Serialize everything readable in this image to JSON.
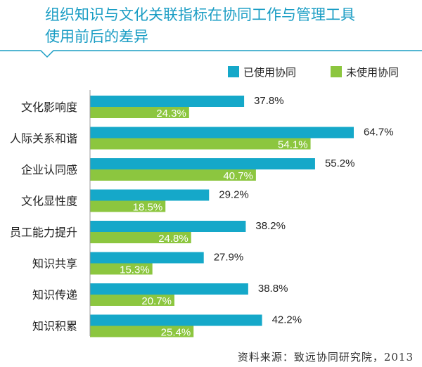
{
  "title_lines": [
    "组织知识与文化关联指标在协同工作与管理工具",
    "使用前后的差异"
  ],
  "source": "资料来源：致远协同研究院，2013",
  "colors": {
    "accent": "#1a9dc4",
    "series_used": "#15a8c9",
    "series_unused": "#8cc63f"
  },
  "chart_data": {
    "type": "bar",
    "orientation": "horizontal",
    "categories": [
      "文化影响度",
      "人际关系和谐",
      "企业认同感",
      "文化显性度",
      "员工能力提升",
      "知识共享",
      "知识传递",
      "知识积累"
    ],
    "series": [
      {
        "name": "已使用协同",
        "values": [
          37.8,
          64.7,
          55.2,
          29.2,
          38.2,
          27.9,
          38.8,
          42.2
        ],
        "labels": [
          "37.8%",
          "64.7%",
          "55.2%",
          "29.2%",
          "38.2%",
          "27.9%",
          "38.8%",
          "42.2%"
        ]
      },
      {
        "name": "未使用协同",
        "values": [
          24.3,
          54.1,
          40.7,
          18.5,
          24.8,
          15.3,
          20.7,
          25.4
        ],
        "labels": [
          "24.3%",
          "54.1%",
          "40.7%",
          "18.5%",
          "24.8%",
          "15.3%",
          "20.7%",
          "25.4%"
        ]
      }
    ],
    "xlim": [
      0,
      70
    ],
    "legend_position": "top-right"
  }
}
